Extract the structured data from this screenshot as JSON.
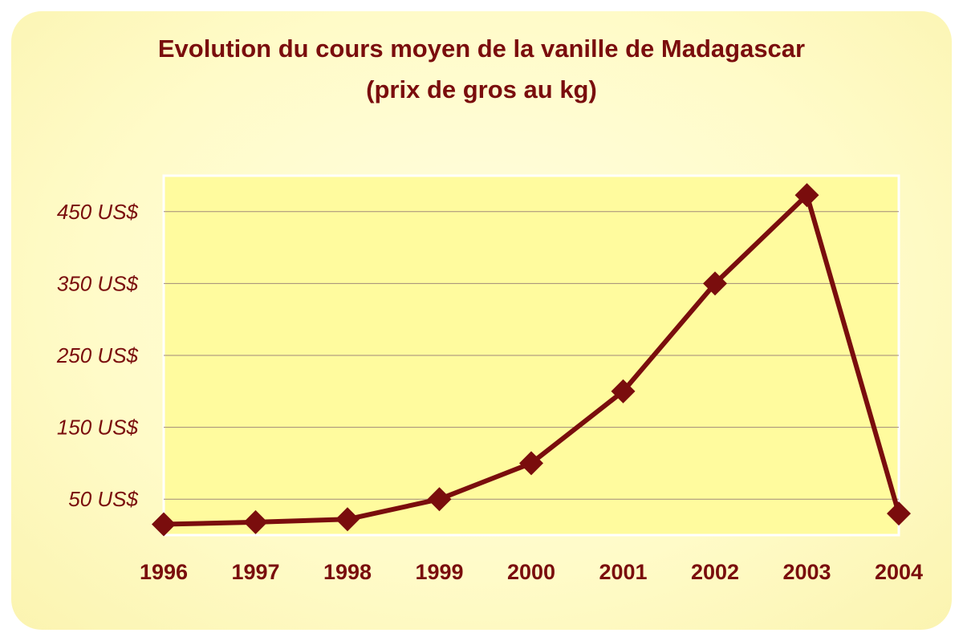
{
  "chart_data": {
    "type": "line",
    "title": "Evolution du cours moyen de la vanille de Madagascar",
    "subtitle": "(prix de gros au kg)",
    "xlabel": "",
    "ylabel": "",
    "categories": [
      "1996",
      "1997",
      "1998",
      "1999",
      "2000",
      "2001",
      "2002",
      "2003",
      "2004"
    ],
    "series": [
      {
        "values": [
          15,
          18,
          22,
          50,
          100,
          200,
          350,
          473,
          30
        ]
      }
    ],
    "yticks": [
      50,
      150,
      250,
      350,
      450
    ],
    "ytick_labels": [
      "50 US$",
      "150 US$",
      "250 US$",
      "350 US$",
      "450 US$"
    ],
    "ylim": [
      0,
      500
    ],
    "grid": true,
    "legend": "none",
    "colors": {
      "line": "#7a0d0d",
      "text": "#7a0d0d",
      "plot_background": "#fffb9e",
      "card_background": "#fffbc8",
      "grid": "#a08a7a"
    }
  }
}
